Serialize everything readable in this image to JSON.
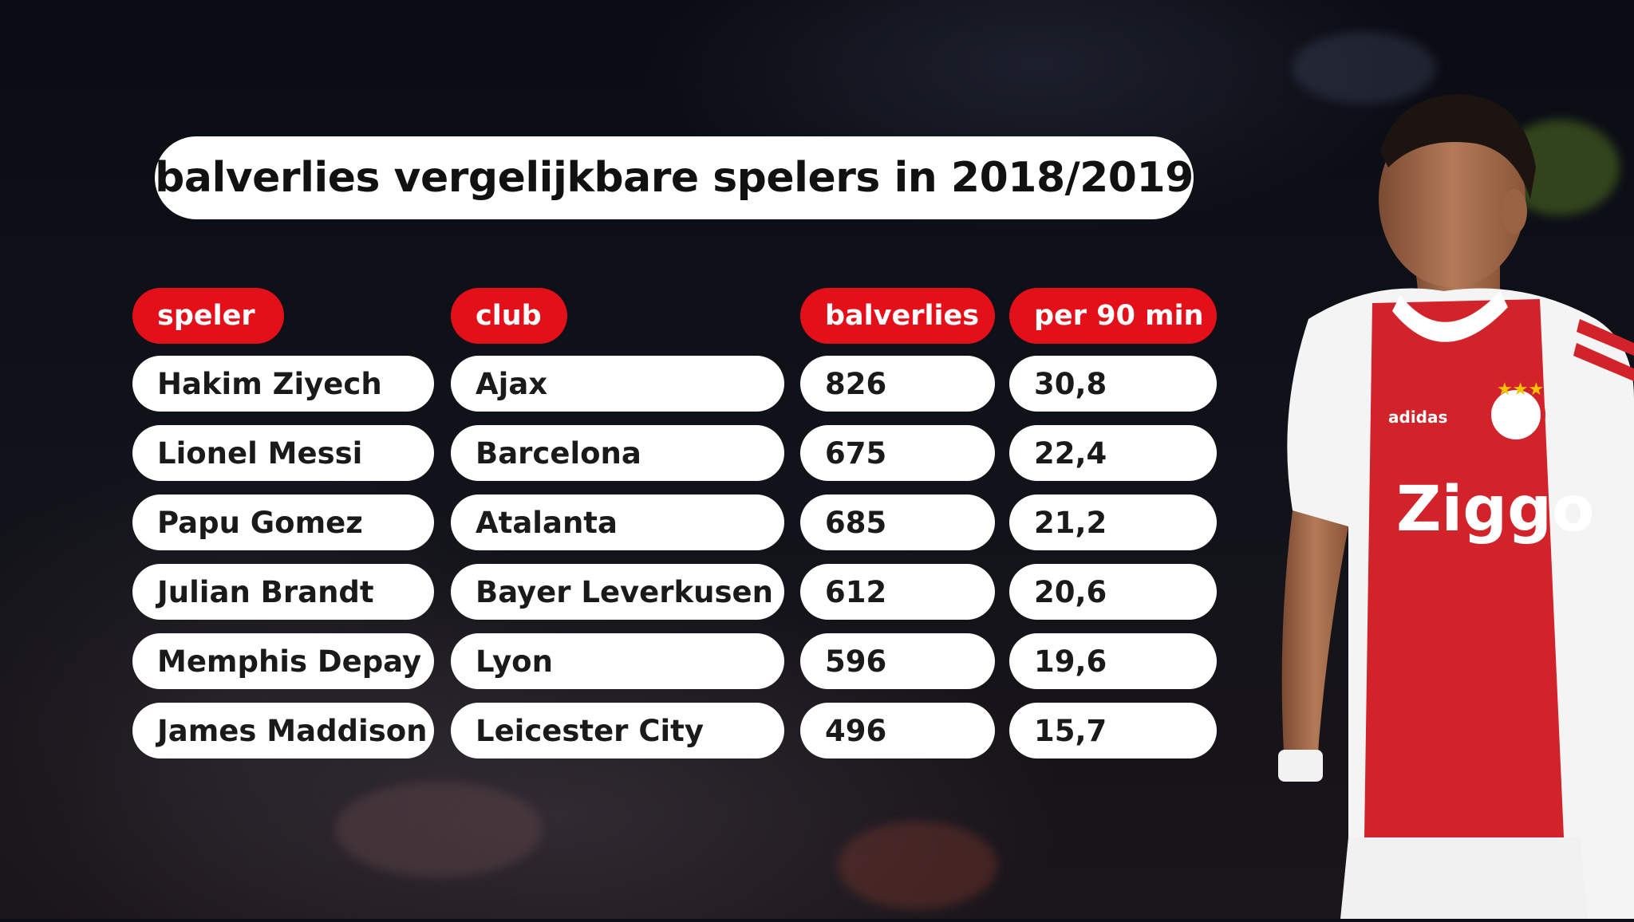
{
  "title": "balverlies vergelijkbare spelers in 2018/2019",
  "headers": {
    "speler": "speler",
    "club": "club",
    "balverlies": "balverlies",
    "per90": "per 90 min"
  },
  "rows": [
    {
      "speler": "Hakim Ziyech",
      "club": "Ajax",
      "balverlies": "826",
      "per90": "30,8"
    },
    {
      "speler": "Lionel Messi",
      "club": "Barcelona",
      "balverlies": "675",
      "per90": "22,4"
    },
    {
      "speler": "Papu Gomez",
      "club": "Atalanta",
      "balverlies": "685",
      "per90": "21,2"
    },
    {
      "speler": "Julian Brandt",
      "club": "Bayer Leverkusen",
      "balverlies": "612",
      "per90": "20,6"
    },
    {
      "speler": "Memphis Depay",
      "club": "Lyon",
      "balverlies": "596",
      "per90": "19,6"
    },
    {
      "speler": "James Maddison",
      "club": "Leicester City",
      "balverlies": "496",
      "per90": "15,7"
    }
  ],
  "jersey": {
    "sponsor": "Ziggo",
    "brand": "adidas"
  },
  "colors": {
    "accent_red": "#e3101a",
    "pill_white": "#ffffff",
    "jersey_red": "#d2232a"
  }
}
